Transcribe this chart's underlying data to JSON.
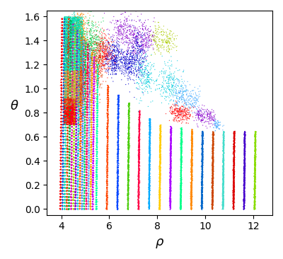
{
  "xlabel": "ρ",
  "ylabel": "θ",
  "xlim": [
    3.4,
    12.8
  ],
  "ylim": [
    -0.05,
    1.65
  ],
  "xlabel_fontsize": 13,
  "ylabel_fontsize": 13,
  "figsize": [
    4.0,
    3.66
  ],
  "dpi": 100,
  "background_color": "#ffffff",
  "seed": 42,
  "xticks": [
    4,
    6,
    8,
    10,
    12
  ],
  "yticks": [
    0.0,
    0.2,
    0.4,
    0.6,
    0.8,
    1.0,
    1.2,
    1.4,
    1.6
  ]
}
